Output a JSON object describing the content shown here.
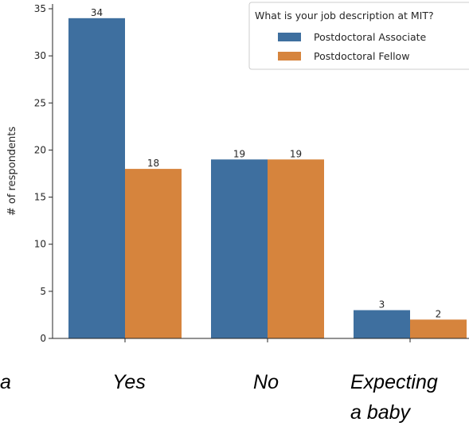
{
  "chart_data": {
    "type": "bar",
    "categories": [
      "Yes",
      "No",
      "Expecting a baby"
    ],
    "category_lines": [
      [
        "Yes"
      ],
      [
        "No"
      ],
      [
        "Expecting",
        "a baby"
      ]
    ],
    "series": [
      {
        "name": "Postdoctoral Associate",
        "color": "#3e6f9f",
        "values": [
          34,
          19,
          3
        ]
      },
      {
        "name": "Postdoctoral Fellow",
        "color": "#d6843d",
        "values": [
          18,
          19,
          2
        ]
      }
    ],
    "ylabel": "# of respondents",
    "ylim": [
      0,
      35
    ],
    "yticks": [
      "0",
      "5",
      "10",
      "15",
      "20",
      "25",
      "30",
      "35"
    ],
    "legend_title": "What is your job description at MIT?",
    "legend_position": "top-right",
    "cut_off_left_label": "a",
    "grid": false
  }
}
